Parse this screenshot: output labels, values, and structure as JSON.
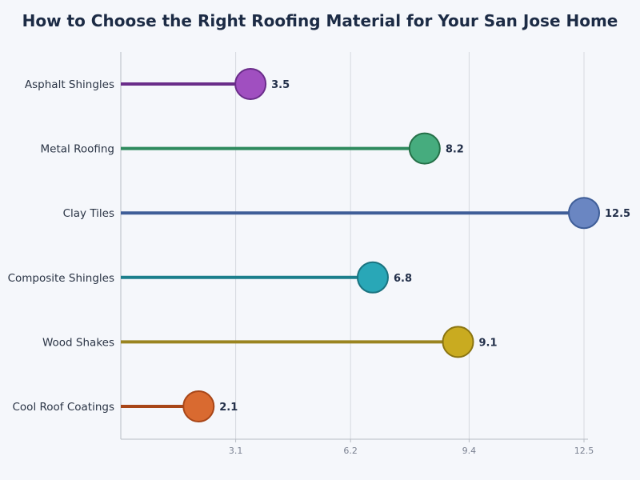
{
  "chart_data": {
    "type": "lollipop",
    "title": "How to Choose the Right Roofing Material for Your San Jose Home",
    "xlabel": "",
    "ylabel": "",
    "xlim": [
      0,
      12.5
    ],
    "xticks": [
      3.1,
      6.2,
      9.4,
      12.5
    ],
    "xtick_labels": [
      "3.1",
      "6.2",
      "9.4",
      "12.5"
    ],
    "grid": "vertical",
    "categories": [
      "Asphalt Shingles",
      "Metal Roofing",
      "Clay Tiles",
      "Composite Shingles",
      "Wood Shakes",
      "Cool Roof Coatings"
    ],
    "values": [
      3.5,
      8.2,
      12.5,
      6.8,
      9.1,
      2.1
    ],
    "value_labels": [
      "3.5",
      "8.2",
      "12.5",
      "6.8",
      "9.1",
      "2.1"
    ],
    "colors": [
      {
        "line": "#6a2d8a",
        "fill": "#a04fc0",
        "stroke": "#6a2d8a"
      },
      {
        "line": "#2e8a5e",
        "fill": "#46ac7e",
        "stroke": "#257048"
      },
      {
        "line": "#3f5e98",
        "fill": "#6a86c2",
        "stroke": "#3f5e98"
      },
      {
        "line": "#1c7f8c",
        "fill": "#29a7b7",
        "stroke": "#1a7380"
      },
      {
        "line": "#9a8420",
        "fill": "#c9ab20",
        "stroke": "#8a7410"
      },
      {
        "line": "#a84618",
        "fill": "#d96a30",
        "stroke": "#a84618"
      }
    ]
  }
}
